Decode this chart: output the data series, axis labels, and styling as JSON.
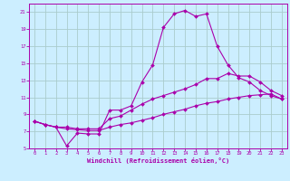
{
  "xlabel": "Windchill (Refroidissement éolien,°C)",
  "background_color": "#cceeff",
  "grid_color": "#aacccc",
  "line_color": "#aa00aa",
  "xlim": [
    -0.5,
    23.5
  ],
  "ylim": [
    5,
    22
  ],
  "xticks": [
    0,
    1,
    2,
    3,
    4,
    5,
    6,
    7,
    8,
    9,
    10,
    11,
    12,
    13,
    14,
    15,
    16,
    17,
    18,
    19,
    20,
    21,
    22,
    23
  ],
  "yticks": [
    5,
    7,
    9,
    11,
    13,
    15,
    17,
    19,
    21
  ],
  "curve1_x": [
    0,
    1,
    2,
    3,
    4,
    5,
    6,
    7,
    8,
    9,
    10,
    11,
    12,
    13,
    14,
    15,
    16,
    17,
    18,
    19,
    20,
    21,
    22,
    23
  ],
  "curve1_y": [
    8.2,
    7.8,
    7.5,
    5.3,
    6.8,
    6.7,
    6.7,
    9.5,
    9.5,
    10.0,
    12.8,
    14.8,
    19.2,
    20.8,
    21.2,
    20.5,
    20.8,
    17.0,
    14.8,
    13.3,
    12.8,
    11.8,
    11.2,
    10.8
  ],
  "curve2_x": [
    0,
    1,
    2,
    3,
    4,
    5,
    6,
    7,
    8,
    9,
    10,
    11,
    12,
    13,
    14,
    15,
    16,
    17,
    18,
    19,
    20,
    21,
    22,
    23
  ],
  "curve2_y": [
    8.2,
    7.8,
    7.5,
    7.5,
    7.3,
    7.3,
    7.3,
    8.5,
    8.8,
    9.5,
    10.2,
    10.8,
    11.2,
    11.6,
    12.0,
    12.5,
    13.2,
    13.2,
    13.8,
    13.5,
    13.5,
    12.8,
    11.8,
    11.2
  ],
  "curve3_x": [
    0,
    1,
    2,
    3,
    4,
    5,
    6,
    7,
    8,
    9,
    10,
    11,
    12,
    13,
    14,
    15,
    16,
    17,
    18,
    19,
    20,
    21,
    22,
    23
  ],
  "curve3_y": [
    8.2,
    7.8,
    7.5,
    7.3,
    7.2,
    7.1,
    7.1,
    7.5,
    7.8,
    8.0,
    8.3,
    8.6,
    9.0,
    9.3,
    9.6,
    10.0,
    10.3,
    10.5,
    10.8,
    11.0,
    11.2,
    11.3,
    11.4,
    10.8
  ]
}
